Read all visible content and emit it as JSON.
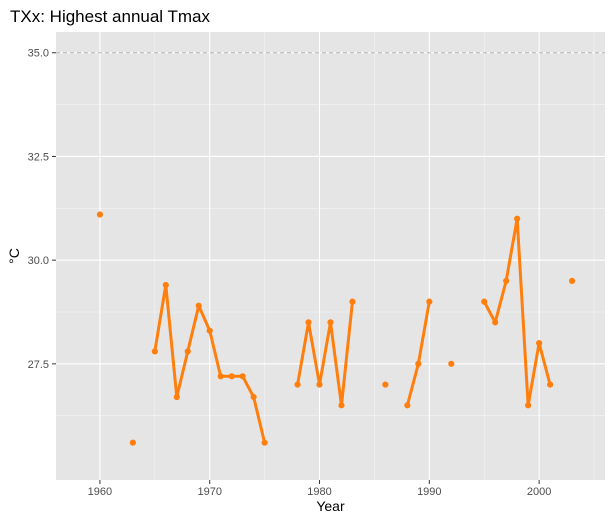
{
  "chart_data": {
    "type": "line",
    "title": "TXx: Highest annual Tmax",
    "xlabel": "Year",
    "ylabel": "°C",
    "xlim": [
      1956,
      2006
    ],
    "ylim": [
      24.7,
      35.5
    ],
    "x_ticks": [
      1960,
      1970,
      1980,
      1990,
      2000
    ],
    "x_tick_labels": [
      "1960",
      "1970",
      "1980",
      "1990",
      "2000"
    ],
    "y_ticks": [
      27.5,
      30.0,
      32.5,
      35.0
    ],
    "y_tick_labels": [
      "27.5",
      "30.0",
      "32.5",
      "35.0"
    ],
    "reference_line": {
      "y": 35.0,
      "style": "dashed"
    },
    "grid": true,
    "legend": "none",
    "colors": {
      "series": "#ff7f0e",
      "panel": "#e5e5e5",
      "grid": "#ffffff",
      "reference": "#b3b3b3"
    },
    "series": [
      {
        "x": [
          1960,
          1963,
          1965,
          1966,
          1967,
          1968,
          1969,
          1970,
          1971,
          1972,
          1973,
          1974,
          1975,
          1978,
          1979,
          1980,
          1981,
          1982,
          1983,
          1986,
          1988,
          1989,
          1990,
          1992,
          1995,
          1996,
          1997,
          1998,
          1999,
          2000,
          2001,
          2003
        ],
        "values": [
          31.1,
          25.6,
          27.8,
          29.4,
          26.7,
          27.8,
          28.9,
          28.3,
          27.2,
          27.2,
          27.2,
          26.7,
          25.6,
          27.0,
          28.5,
          27.0,
          28.5,
          26.5,
          29.0,
          27.0,
          26.5,
          27.5,
          29.0,
          27.5,
          29.0,
          28.5,
          29.5,
          31.0,
          26.5,
          28.0,
          27.0,
          29.5
        ]
      }
    ]
  }
}
